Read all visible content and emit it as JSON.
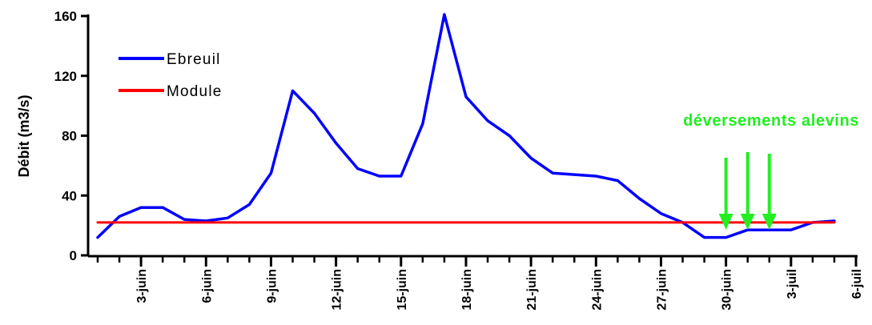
{
  "chart_data": {
    "type": "line",
    "ylabel": "Débit (m3/s)",
    "ylim": [
      0,
      160
    ],
    "y_ticks": [
      0,
      40,
      80,
      120,
      160
    ],
    "x_tick_labels": [
      "3-juin",
      "6-juin",
      "9-juin",
      "12-juin",
      "15-juin",
      "18-juin",
      "21-juin",
      "24-juin",
      "27-juin",
      "30-juin",
      "3-juil",
      "6-juil"
    ],
    "x_tick_days": [
      3,
      6,
      9,
      12,
      15,
      18,
      21,
      24,
      27,
      30,
      33,
      36
    ],
    "xlim_days": [
      1,
      36
    ],
    "series": [
      {
        "name": "Ebreuil",
        "color": "#0000ff",
        "x_days": [
          1,
          2,
          3,
          4,
          5,
          6,
          7,
          8,
          9,
          10,
          11,
          12,
          13,
          14,
          15,
          16,
          17,
          18,
          19,
          20,
          21,
          22,
          23,
          24,
          25,
          26,
          27,
          28,
          29,
          30,
          31,
          32,
          33,
          34,
          35
        ],
        "values": [
          12,
          26,
          32,
          32,
          24,
          23,
          25,
          34,
          55,
          110,
          95,
          75,
          58,
          53,
          53,
          88,
          161,
          106,
          90,
          80,
          65,
          55,
          54,
          53,
          50,
          38,
          28,
          22,
          12,
          12,
          17,
          17,
          17,
          22,
          23
        ]
      },
      {
        "name": "Module",
        "color": "#ff0000",
        "x_days": [
          1,
          35
        ],
        "values": [
          22,
          22
        ]
      }
    ],
    "legend": {
      "placement": "top-left",
      "entries": [
        "Ebreuil",
        "Module"
      ]
    },
    "annotation": {
      "text": "déversements alevins",
      "color": "#22ee22",
      "arrow_days": [
        30,
        31,
        32
      ],
      "arrow_tip_value": 15
    }
  }
}
